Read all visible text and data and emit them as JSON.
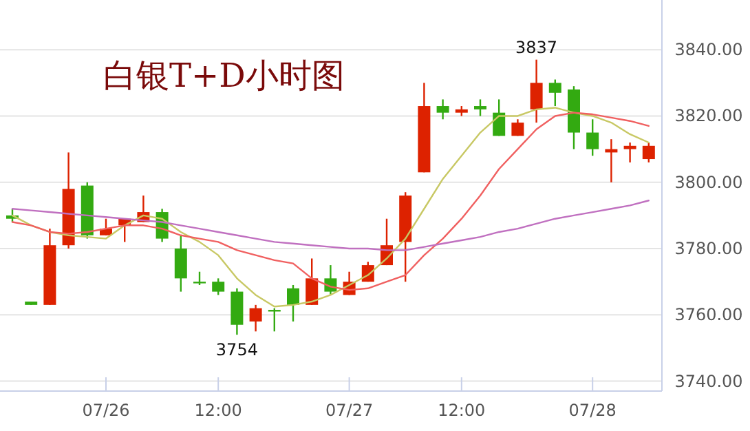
{
  "chart_data": {
    "type": "candlestick",
    "title": "白银T+D小时图",
    "categories": [
      null,
      null,
      null,
      null,
      null,
      "07/26",
      null,
      null,
      null,
      null,
      null,
      "12:00",
      null,
      null,
      null,
      null,
      null,
      null,
      "07/27",
      null,
      null,
      null,
      null,
      null,
      "12:00",
      null,
      null,
      null,
      null,
      null,
      null,
      "07/28",
      null,
      null,
      null
    ],
    "ohlc": [
      [
        3790,
        3792,
        3788,
        3789
      ],
      [
        3764,
        3764,
        3763,
        3763
      ],
      [
        3763,
        3786,
        3763,
        3781
      ],
      [
        3781,
        3809,
        3780,
        3798
      ],
      [
        3799,
        3800,
        3783,
        3784
      ],
      [
        3784,
        3789,
        3784,
        3786
      ],
      [
        3787,
        3789,
        3782,
        3789
      ],
      [
        3788,
        3796,
        3788,
        3791
      ],
      [
        3791,
        3792,
        3782,
        3783
      ],
      [
        3780,
        3784,
        3767,
        3771
      ],
      [
        3770,
        3773,
        3769,
        3769.5
      ],
      [
        3770,
        3771,
        3766,
        3767
      ],
      [
        3767,
        3768,
        3754,
        3757
      ],
      [
        3758,
        3763,
        3755,
        3762
      ],
      [
        3761.5,
        3762,
        3755,
        3761
      ],
      [
        3768,
        3769,
        3758,
        3763
      ],
      [
        3763,
        3777,
        3763,
        3771
      ],
      [
        3771,
        3775,
        3766,
        3767
      ],
      [
        3766,
        3773,
        3766,
        3770
      ],
      [
        3770,
        3776,
        3770,
        3775
      ],
      [
        3775,
        3789,
        3775,
        3781
      ],
      [
        3782,
        3797,
        3770,
        3796
      ],
      [
        3803,
        3830,
        3803,
        3823
      ],
      [
        3823,
        3825,
        3819,
        3821
      ],
      [
        3821,
        3823,
        3820,
        3822
      ],
      [
        3823,
        3825,
        3820,
        3822
      ],
      [
        3821,
        3825,
        3814,
        3814
      ],
      [
        3814,
        3819,
        3814,
        3818
      ],
      [
        3822,
        3837,
        3818,
        3830
      ],
      [
        3830,
        3831,
        3823,
        3827
      ],
      [
        3828,
        3829,
        3810,
        3815
      ],
      [
        3815,
        3819,
        3808,
        3810
      ],
      [
        3809,
        3813,
        3800,
        3810
      ],
      [
        3810,
        3812,
        3806,
        3811
      ],
      [
        3807,
        3812,
        3806,
        3811
      ]
    ],
    "colors": [
      "#33aa11",
      "#33aa11",
      "#dd2200",
      "#dd2200",
      "#33aa11",
      "#dd2200",
      "#dd2200",
      "#dd2200",
      "#33aa11",
      "#33aa11",
      "#33aa11",
      "#33aa11",
      "#33aa11",
      "#dd2200",
      "#33aa11",
      "#33aa11",
      "#dd2200",
      "#33aa11",
      "#dd2200",
      "#dd2200",
      "#dd2200",
      "#dd2200",
      "#dd2200",
      "#33aa11",
      "#dd2200",
      "#33aa11",
      "#33aa11",
      "#dd2200",
      "#dd2200",
      "#33aa11",
      "#33aa11",
      "#33aa11",
      "#dd2200",
      "#dd2200",
      "#dd2200"
    ],
    "series": [
      {
        "type": "line",
        "color": "#c8c864",
        "values": [
          3790,
          3787,
          3785,
          3784,
          3783.5,
          3783,
          3787,
          3790,
          3789,
          3785,
          3782,
          3778,
          3771,
          3766,
          3762.5,
          3763,
          3764,
          3766,
          3769,
          3772,
          3777,
          3783,
          3792,
          3801,
          3808,
          3815,
          3820,
          3820,
          3822,
          3822.5,
          3821,
          3820,
          3818,
          3814.5,
          3812
        ]
      },
      {
        "type": "line",
        "color": "#f06060",
        "values": [
          3788,
          3787,
          3785,
          3784.5,
          3785,
          3786,
          3787,
          3787,
          3786,
          3784,
          3783,
          3782,
          3779.5,
          3778,
          3776.5,
          3775.5,
          3771,
          3768.5,
          3767.5,
          3768,
          3770,
          3772,
          3778,
          3783,
          3789,
          3796,
          3804,
          3810,
          3816,
          3820,
          3821,
          3820.5,
          3819.5,
          3818.5,
          3817
        ]
      },
      {
        "type": "line",
        "color": "#c070c0",
        "values": [
          3792,
          3791.5,
          3791,
          3790.5,
          3790,
          3789.5,
          3789,
          3788.5,
          3788,
          3787,
          3786,
          3785,
          3784,
          3783,
          3782,
          3781.5,
          3781,
          3780.5,
          3780,
          3780,
          3779.5,
          3779.5,
          3780.5,
          3781.5,
          3782.5,
          3783.5,
          3785,
          3786,
          3787.5,
          3789,
          3790,
          3791,
          3792,
          3793,
          3794.5
        ]
      }
    ],
    "ylim": [
      3737,
      3855
    ],
    "yticks": [
      {
        "value": 3740,
        "label": "3740.00"
      },
      {
        "value": 3760,
        "label": "3760.00"
      },
      {
        "value": 3780,
        "label": "3780.00"
      },
      {
        "value": 3800,
        "label": "3800.00"
      },
      {
        "value": 3820,
        "label": "3820.00"
      },
      {
        "value": 3840,
        "label": "3840.00"
      }
    ],
    "grid": "y",
    "annotations": [
      {
        "text": "3837",
        "y": 3837
      },
      {
        "text": "3754",
        "y": 3754
      }
    ]
  }
}
